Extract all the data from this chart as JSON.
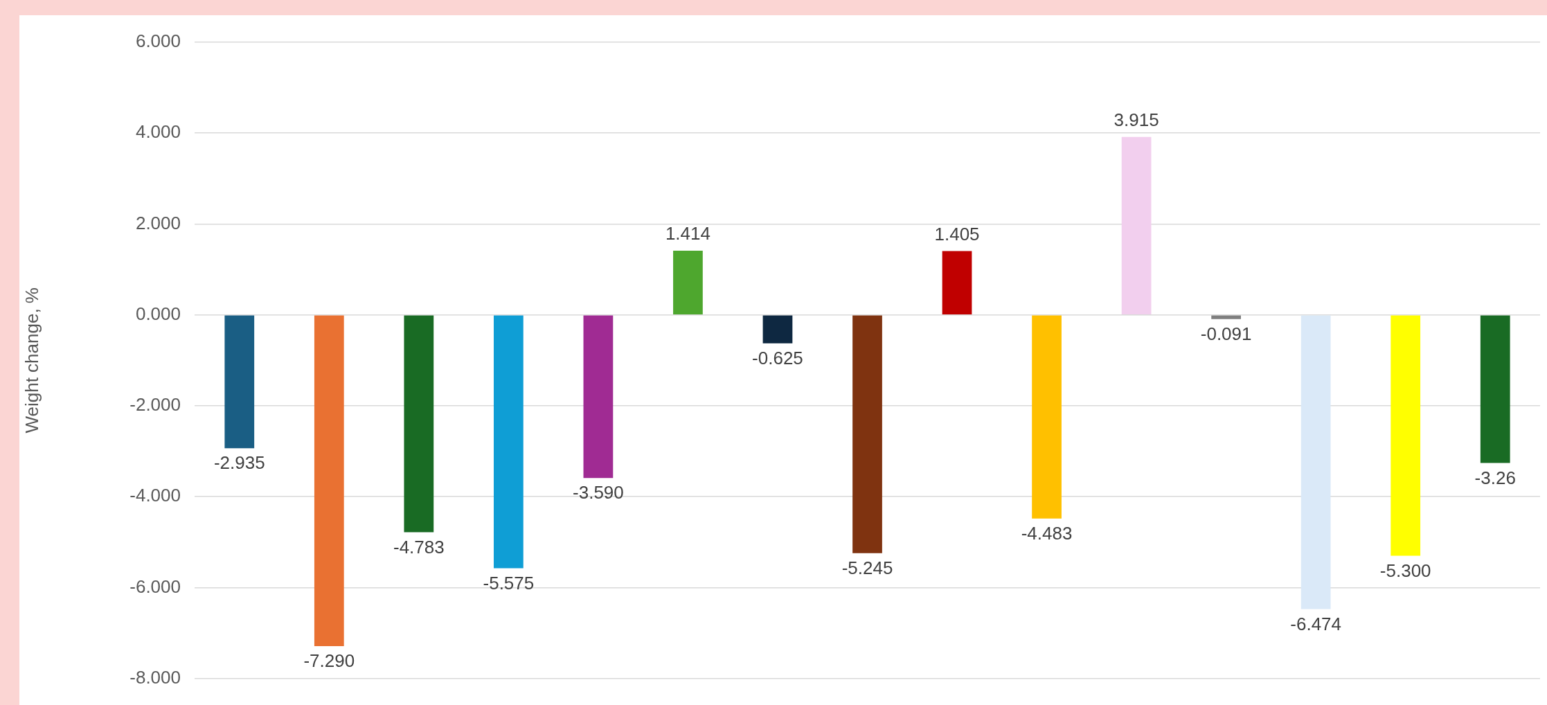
{
  "chart_data": {
    "type": "bar",
    "ylabel": "Weight change, %",
    "categories": [
      null,
      null,
      null,
      null,
      null,
      null,
      null,
      null,
      null,
      null,
      null,
      null,
      null,
      null,
      null
    ],
    "values": [
      -2.935,
      -7.29,
      -4.783,
      -5.575,
      -3.59,
      1.414,
      -0.625,
      -5.245,
      1.405,
      -4.483,
      3.915,
      -0.091,
      -6.474,
      -5.3,
      -3.26
    ],
    "colors": [
      "#1a5e84",
      "#e97132",
      "#196b24",
      "#0f9ed5",
      "#a02b93",
      "#4ea72e",
      "#0e2841",
      "#7f3310",
      "#c00000",
      "#ffc000",
      "#f2cfee",
      "#7f7f7f",
      "#dae9f8",
      "#ffff00",
      "#196b24"
    ],
    "value_labels": [
      "-2.935",
      "-7.290",
      "-4.783",
      "-5.575",
      "-3.590",
      "1.414",
      "-0.625",
      "-5.245",
      "1.405",
      "-4.483",
      "3.915",
      "-0.091",
      "-6.474",
      "-5.300",
      "-3.26"
    ],
    "ylim": [
      -8,
      6
    ],
    "yticks": [
      {
        "value": -8,
        "label": "-8.000"
      },
      {
        "value": -6,
        "label": "-6.000"
      },
      {
        "value": -4,
        "label": "-4.000"
      },
      {
        "value": -2,
        "label": "-2.000"
      },
      {
        "value": 0,
        "label": "0.000"
      },
      {
        "value": 2,
        "label": "2.000"
      },
      {
        "value": 4,
        "label": "4.000"
      },
      {
        "value": 6,
        "label": "6.000"
      }
    ],
    "grid": "y",
    "legend": false
  }
}
